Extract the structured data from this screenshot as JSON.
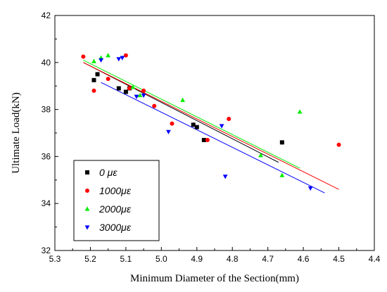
{
  "chart_data": {
    "type": "scatter",
    "xlabel": "Minimum Diameter of the Section(mm)",
    "ylabel": "Ultimate Load(kN)",
    "xlim": [
      5.3,
      4.4
    ],
    "ylim": [
      32,
      42
    ],
    "x_reversed": true,
    "xticks": [
      "5.3",
      "5.2",
      "5.1",
      "5.0",
      "4.9",
      "4.8",
      "4.7",
      "4.6",
      "4.5",
      "4.4"
    ],
    "yticks": [
      "32",
      "34",
      "36",
      "38",
      "40",
      "42"
    ],
    "legend_position": "bottom-left",
    "series": [
      {
        "name": "0   με",
        "marker": "square",
        "color": "#000000",
        "x": [
          5.19,
          5.18,
          5.12,
          5.1,
          5.09,
          4.91,
          4.9,
          4.88,
          4.66
        ],
        "y": [
          39.25,
          39.5,
          38.9,
          38.75,
          38.9,
          37.35,
          37.25,
          36.7,
          36.6
        ],
        "fit": {
          "x": [
            5.22,
            4.67
          ],
          "y": [
            40.0,
            35.75
          ]
        }
      },
      {
        "name": "1000με",
        "marker": "circle",
        "color": "#ff0000",
        "x": [
          5.22,
          5.19,
          5.15,
          5.1,
          5.09,
          5.05,
          5.02,
          4.97,
          4.87,
          4.81,
          4.5
        ],
        "y": [
          40.25,
          38.8,
          39.3,
          40.3,
          38.9,
          38.8,
          38.15,
          37.4,
          36.7,
          37.6,
          36.5
        ],
        "fit": {
          "x": [
            5.22,
            4.5
          ],
          "y": [
            40.0,
            34.6
          ]
        }
      },
      {
        "name": "2000με",
        "marker": "triangle-up",
        "color": "#00ee00",
        "x": [
          5.19,
          5.17,
          5.15,
          5.08,
          5.06,
          4.94,
          4.72,
          4.66,
          4.61
        ],
        "y": [
          40.05,
          40.2,
          40.3,
          38.95,
          38.6,
          38.4,
          36.05,
          35.2,
          37.9
        ],
        "fit": {
          "x": [
            5.22,
            4.61
          ],
          "y": [
            40.1,
            35.5
          ]
        }
      },
      {
        "name": "3000με",
        "marker": "triangle-down",
        "color": "#0000ff",
        "x": [
          5.17,
          5.12,
          5.11,
          5.07,
          5.05,
          4.98,
          4.83,
          4.82,
          4.58
        ],
        "y": [
          40.1,
          40.15,
          40.2,
          38.55,
          38.6,
          37.05,
          37.3,
          35.15,
          34.65
        ],
        "fit": {
          "x": [
            5.17,
            4.54
          ],
          "y": [
            39.15,
            34.45
          ]
        }
      }
    ]
  }
}
